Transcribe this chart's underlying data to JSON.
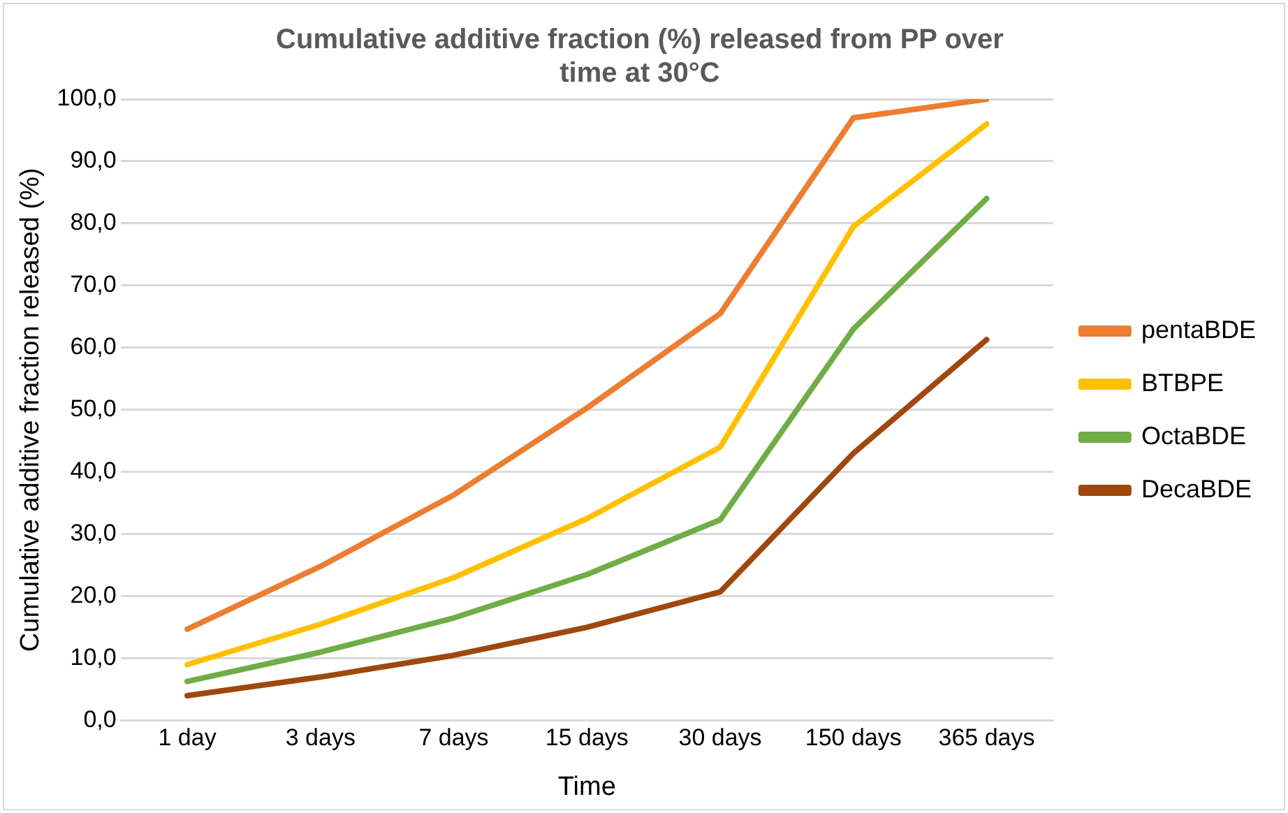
{
  "chart_data": {
    "type": "line",
    "title": "Cumulative additive fraction (%) released from PP over time at 30°C",
    "xlabel": "Time",
    "ylabel": "Cumulative additive fraction released (%)",
    "categories": [
      "1 day",
      "3 days",
      "7 days",
      "15 days",
      "30 days",
      "150 days",
      "365 days"
    ],
    "series": [
      {
        "name": "pentaBDE",
        "color": "#ed7d31",
        "values": [
          14.7,
          24.8,
          36.3,
          50.3,
          65.5,
          97.0,
          100.0
        ]
      },
      {
        "name": "BTBPE",
        "color": "#ffc000",
        "values": [
          9.0,
          15.5,
          23.0,
          32.5,
          44.0,
          79.5,
          96.0
        ]
      },
      {
        "name": "OctaBDE",
        "color": "#70ad47",
        "values": [
          6.3,
          11.0,
          16.5,
          23.5,
          32.3,
          63.0,
          84.0
        ]
      },
      {
        "name": "DecaBDE",
        "color": "#9e480e",
        "values": [
          4.0,
          7.0,
          10.5,
          15.0,
          20.7,
          43.0,
          61.3
        ]
      }
    ],
    "ylim": [
      0,
      100
    ],
    "yticks": [
      {
        "value": 0,
        "label": "0,0"
      },
      {
        "value": 10,
        "label": "10,0"
      },
      {
        "value": 20,
        "label": "20,0"
      },
      {
        "value": 30,
        "label": "30,0"
      },
      {
        "value": 40,
        "label": "40,0"
      },
      {
        "value": 50,
        "label": "50,0"
      },
      {
        "value": 60,
        "label": "60,0"
      },
      {
        "value": 70,
        "label": "70,0"
      },
      {
        "value": 80,
        "label": "80,0"
      },
      {
        "value": 90,
        "label": "90,0"
      },
      {
        "value": 100,
        "label": "100,0"
      }
    ],
    "grid": "y",
    "legend": "right",
    "marker": "none",
    "line_style": "solid"
  }
}
